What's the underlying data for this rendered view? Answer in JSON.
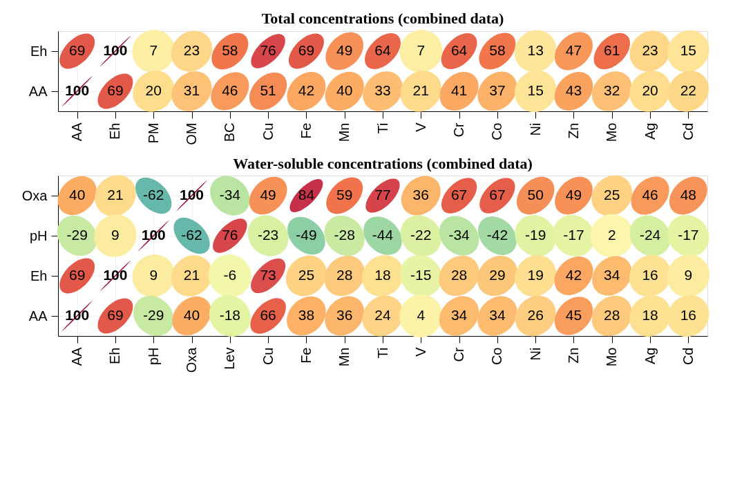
{
  "chart_data": [
    {
      "type": "heatmap",
      "title": "Total concentrations (combined data)",
      "data_labels": true,
      "grid": true,
      "categories": [
        "AA",
        "Eh",
        "PM",
        "OM",
        "BC",
        "Cu",
        "Fe",
        "Mn",
        "Ti",
        "V",
        "Cr",
        "Co",
        "Ni",
        "Zn",
        "Mo",
        "Ag",
        "Cd"
      ],
      "y_categories": [
        "Eh",
        "AA"
      ],
      "cells": [
        [
          69,
          100,
          7,
          23,
          58,
          76,
          69,
          49,
          64,
          7,
          64,
          58,
          13,
          47,
          61,
          23,
          15
        ],
        [
          100,
          69,
          20,
          31,
          46,
          51,
          42,
          40,
          33,
          21,
          41,
          37,
          15,
          43,
          32,
          20,
          22
        ]
      ]
    },
    {
      "type": "heatmap",
      "title": "Water-soluble concentrations (combined data)",
      "data_labels": true,
      "grid": true,
      "categories": [
        "AA",
        "Eh",
        "pH",
        "Oxa",
        "Lev",
        "Cu",
        "Fe",
        "Mn",
        "Ti",
        "V",
        "Cr",
        "Co",
        "Ni",
        "Zn",
        "Mo",
        "Ag",
        "Cd"
      ],
      "y_categories": [
        "Oxa",
        "pH",
        "Eh",
        "AA"
      ],
      "cells": [
        [
          40,
          21,
          -62,
          100,
          -34,
          49,
          84,
          59,
          77,
          36,
          67,
          67,
          50,
          49,
          25,
          46,
          48
        ],
        [
          -29,
          9,
          100,
          -62,
          76,
          -23,
          -49,
          -28,
          -44,
          -22,
          -34,
          -42,
          -19,
          -17,
          2,
          -24,
          -17
        ],
        [
          69,
          100,
          9,
          21,
          -6,
          73,
          25,
          28,
          18,
          -15,
          28,
          29,
          19,
          42,
          34,
          16,
          9
        ],
        [
          100,
          69,
          -29,
          40,
          -18,
          66,
          38,
          36,
          24,
          4,
          34,
          34,
          26,
          45,
          28,
          18,
          16
        ]
      ]
    }
  ]
}
